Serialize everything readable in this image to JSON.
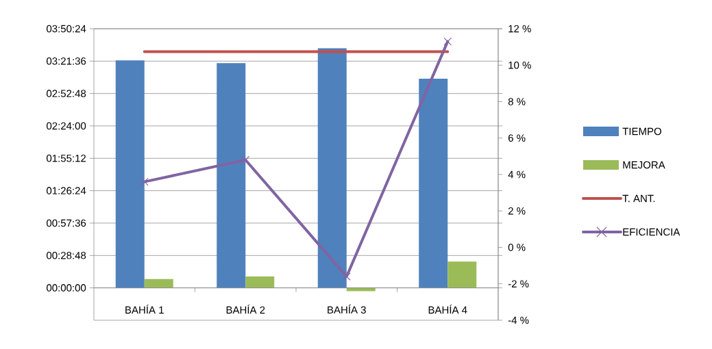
{
  "chart_data": {
    "type": "bar",
    "categories": [
      "BAHÍA 1",
      "BAHÍA 2",
      "BAHÍA 3",
      "BAHÍA 4"
    ],
    "series": [
      {
        "name": "TIEMPO",
        "color": "#4f81bd",
        "values": [
          3.37,
          3.33,
          3.55,
          3.1
        ]
      },
      {
        "name": "MEJORA",
        "color": "#9bbb59",
        "values": [
          0.13,
          0.17,
          -0.05,
          0.39
        ]
      },
      {
        "name": "T. ANT.",
        "type": "line",
        "color": "#c0504d",
        "values": [
          3.5,
          3.5,
          3.5,
          3.5
        ]
      },
      {
        "name": "EFICIENCIA",
        "type": "line",
        "axis": "y2",
        "marker": "cross",
        "color": "#8064a2",
        "values": [
          3.6,
          4.8,
          -1.6,
          11.3
        ]
      }
    ],
    "ylim": [
      -0.48,
      3.84
    ],
    "yticks": [
      {
        "value": 0,
        "label": "00:00:00"
      },
      {
        "value": 0.48,
        "label": "00:28:48"
      },
      {
        "value": 0.96,
        "label": "00:57:36"
      },
      {
        "value": 1.44,
        "label": "01:26:24"
      },
      {
        "value": 1.92,
        "label": "01:55:12"
      },
      {
        "value": 2.4,
        "label": "02:24:00"
      },
      {
        "value": 2.88,
        "label": "02:52:48"
      },
      {
        "value": 3.36,
        "label": "03:21:36"
      },
      {
        "value": 3.84,
        "label": "03:50:24"
      }
    ],
    "y2lim": [
      -4,
      12
    ],
    "y2ticks": [
      {
        "value": -4,
        "label": "-4 %"
      },
      {
        "value": -2,
        "label": "-2 %"
      },
      {
        "value": 0,
        "label": "0 %"
      },
      {
        "value": 2,
        "label": "2 %"
      },
      {
        "value": 4,
        "label": "4 %"
      },
      {
        "value": 6,
        "label": "6 %"
      },
      {
        "value": 8,
        "label": "8 %"
      },
      {
        "value": 10,
        "label": "10 %"
      },
      {
        "value": 12,
        "label": "12 %"
      }
    ],
    "grid": "y",
    "legend": "right"
  }
}
